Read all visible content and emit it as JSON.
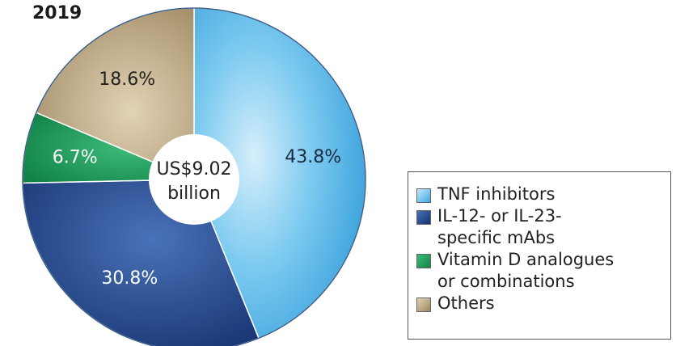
{
  "year_title": "2019",
  "colors": {
    "tnf": "#4fb3e6",
    "il": "#254a8f",
    "vitd": "#1f9a5b",
    "others": "#b8a07a"
  },
  "chart_data": {
    "type": "pie",
    "title": "2019",
    "center_label": "US$9.02\nbillion",
    "slices": [
      {
        "name": "TNF inhibitors",
        "value": 43.8,
        "label": "43.8%"
      },
      {
        "name": "IL-12- or IL-23-\nspecific mAbs",
        "value": 30.8,
        "label": "30.8%"
      },
      {
        "name": "Vitamin D analogues\nor combinations",
        "value": 6.7,
        "label": "6.7%"
      },
      {
        "name": "Others",
        "value": 18.6,
        "label": "18.6%"
      }
    ],
    "legend_position": "bottom-right"
  }
}
